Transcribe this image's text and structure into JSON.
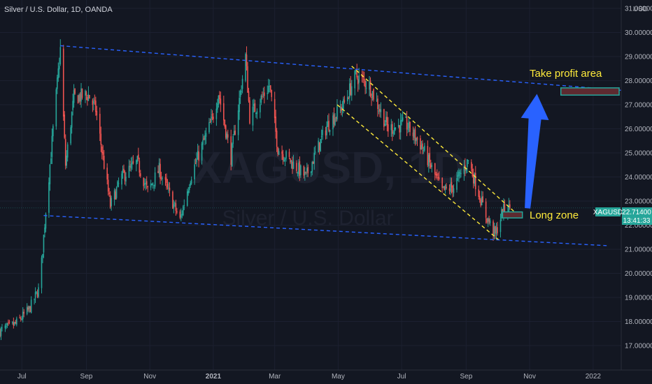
{
  "header": {
    "symbol_title": "Silver / U.S. Dollar, 1D, OANDA",
    "currency": "USD"
  },
  "watermark": {
    "symbol": "XAGUSD, 1D",
    "name": "Silver / U.S. Dollar"
  },
  "price_tag": {
    "symbol": "XAGUSD",
    "price": "22.71400",
    "countdown": "13:41:33",
    "color": "#26a69a"
  },
  "annotations": {
    "take_profit": "Take profit area",
    "long_zone": "Long zone"
  },
  "colors": {
    "background": "#131722",
    "up": "#26a69a",
    "down": "#ef5350",
    "channel": "#2962ff",
    "wedge": "#ffeb3b",
    "arrow": "#2962ff",
    "zone_border": "#26a69a",
    "zone_fill": "#5d2a30"
  },
  "chart_data": {
    "type": "candlestick",
    "title": "Silver / U.S. Dollar, 1D, OANDA",
    "ylabel": "USD",
    "ylim": [
      16.4,
      31.5
    ],
    "x_ticks": [
      "Jul",
      "Sep",
      "Nov",
      "2021",
      "Mar",
      "May",
      "Jul",
      "Sep",
      "Nov",
      "2022"
    ],
    "y_ticks": [
      "17.00000",
      "18.00000",
      "19.00000",
      "20.00000",
      "21.00000",
      "22.00000",
      "23.00000",
      "24.00000",
      "25.00000",
      "26.00000",
      "27.00000",
      "28.00000",
      "29.00000",
      "30.00000",
      "31.00000"
    ],
    "x_start": "2020-06-10",
    "x_end": "2022-01-28",
    "last_price": 22.714,
    "close_points": [
      [
        "2020-06-10",
        17.6
      ],
      [
        "2020-06-25",
        17.9
      ],
      [
        "2020-07-08",
        18.5
      ],
      [
        "2020-07-18",
        19.4
      ],
      [
        "2020-07-24",
        22.6
      ],
      [
        "2020-08-07",
        29.3
      ],
      [
        "2020-08-12",
        24.5
      ],
      [
        "2020-08-20",
        27.3
      ],
      [
        "2020-09-03",
        27.4
      ],
      [
        "2020-09-10",
        26.8
      ],
      [
        "2020-09-24",
        22.8
      ],
      [
        "2020-10-05",
        24.0
      ],
      [
        "2020-10-20",
        24.6
      ],
      [
        "2020-10-30",
        23.4
      ],
      [
        "2020-11-10",
        24.3
      ],
      [
        "2020-11-30",
        22.2
      ],
      [
        "2020-12-10",
        24.0
      ],
      [
        "2020-12-31",
        26.4
      ],
      [
        "2021-01-06",
        27.5
      ],
      [
        "2021-01-18",
        24.8
      ],
      [
        "2021-02-01",
        29.0
      ],
      [
        "2021-02-05",
        26.5
      ],
      [
        "2021-02-24",
        27.8
      ],
      [
        "2021-03-04",
        25.2
      ],
      [
        "2021-03-31",
        24.0
      ],
      [
        "2021-04-20",
        26.1
      ],
      [
        "2021-05-06",
        27.0
      ],
      [
        "2021-05-18",
        28.2
      ],
      [
        "2021-05-31",
        27.8
      ],
      [
        "2021-06-18",
        26.0
      ],
      [
        "2021-07-05",
        26.2
      ],
      [
        "2021-07-20",
        25.3
      ],
      [
        "2021-08-09",
        23.4
      ],
      [
        "2021-08-20",
        23.6
      ],
      [
        "2021-09-03",
        24.7
      ],
      [
        "2021-09-20",
        22.4
      ],
      [
        "2021-09-29",
        21.6
      ],
      [
        "2021-10-06",
        22.6
      ],
      [
        "2021-10-13",
        22.71
      ]
    ]
  }
}
